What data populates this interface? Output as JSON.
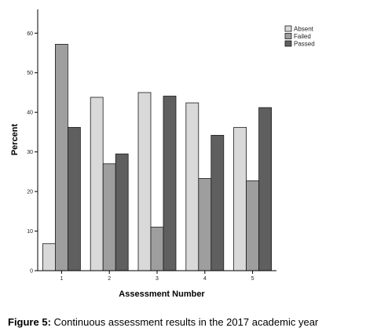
{
  "chart_data": {
    "type": "bar",
    "xlabel": "Assessment Number",
    "ylabel": "Percent",
    "categories": [
      "1",
      "2",
      "3",
      "4",
      "5"
    ],
    "ylim": [
      0,
      66
    ],
    "yticks": [
      0,
      10,
      20,
      30,
      40,
      50,
      60
    ],
    "series": [
      {
        "name": "Absent",
        "color": "#d9d9d9",
        "values": [
          6.8,
          43.8,
          45.0,
          42.4,
          36.2
        ]
      },
      {
        "name": "Failed",
        "color": "#9e9e9e",
        "values": [
          57.2,
          27.0,
          11.0,
          23.3,
          22.7
        ]
      },
      {
        "name": "Passed",
        "color": "#5f5f5f",
        "values": [
          36.2,
          29.5,
          44.1,
          34.2,
          41.2
        ]
      }
    ],
    "legend_position": "top-right",
    "grid": false
  },
  "caption": {
    "label": "Figure 5:",
    "text": " Continuous assessment results in the 2017 academic year"
  }
}
